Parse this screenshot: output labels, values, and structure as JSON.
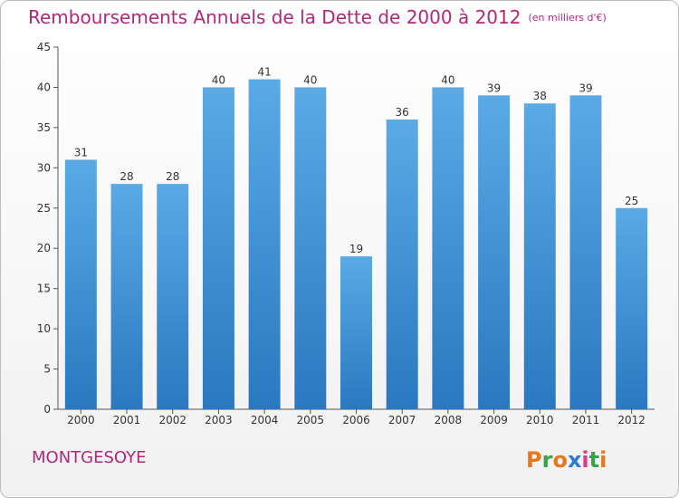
{
  "chart_data": {
    "type": "bar",
    "title": "Remboursements Annuels de la Dette de 2000 à 2012",
    "subtitle": "(en milliers d'€)",
    "categories": [
      "2000",
      "2001",
      "2002",
      "2003",
      "2004",
      "2005",
      "2006",
      "2007",
      "2008",
      "2009",
      "2010",
      "2011",
      "2012"
    ],
    "values": [
      31,
      28,
      28,
      40,
      41,
      40,
      19,
      36,
      40,
      39,
      38,
      39,
      25
    ],
    "ylim": [
      0,
      45
    ],
    "yticks": [
      0,
      5,
      10,
      15,
      20,
      25,
      30,
      35,
      40,
      45
    ],
    "grid": false,
    "legend": "none",
    "bar_color": "#4a9bdc",
    "bar_color_dark": "#2a78c0"
  },
  "footer": {
    "commune": "MONTGESOYE",
    "logo_text": "Proxiti",
    "logo_colors": [
      "#e8771e",
      "#3aa34a",
      "#e8771e",
      "#2e7bd6",
      "#d93a8a",
      "#3aa34a",
      "#e8771e"
    ]
  },
  "colors": {
    "accent": "#b0287a"
  }
}
